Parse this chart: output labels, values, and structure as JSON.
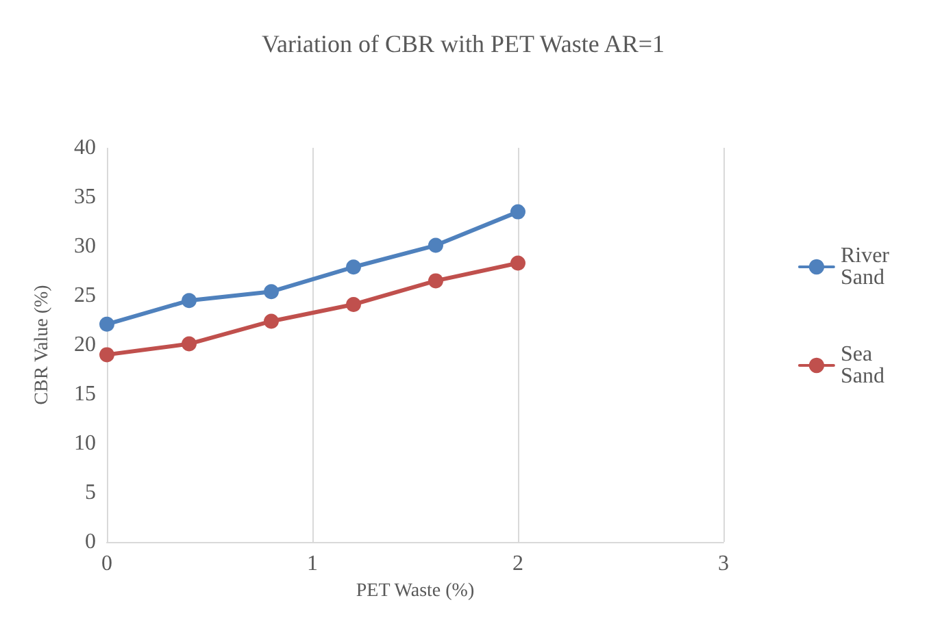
{
  "chart_data": {
    "type": "line",
    "title": "Variation of CBR with PET Waste AR=1",
    "xlabel": "PET Waste (%)",
    "ylabel": "CBR Value (%)",
    "x": [
      0,
      0.4,
      0.8,
      1.2,
      1.6,
      2
    ],
    "series": [
      {
        "name": "River Sand",
        "color": "#4f81bd",
        "values": [
          22.1,
          24.5,
          25.4,
          27.9,
          30.1,
          33.5
        ]
      },
      {
        "name": "Sea Sand",
        "color": "#c0504d",
        "values": [
          19.0,
          20.1,
          22.4,
          24.1,
          26.5,
          28.3
        ]
      }
    ],
    "xlim": [
      0,
      3
    ],
    "xticks": [
      0,
      1,
      2,
      3
    ],
    "ylim": [
      0,
      40
    ],
    "yticks": [
      0,
      5,
      10,
      15,
      20,
      25,
      30,
      35,
      40
    ],
    "grid": "x",
    "legend": "right",
    "marker": "circle",
    "line_style": "solid"
  }
}
